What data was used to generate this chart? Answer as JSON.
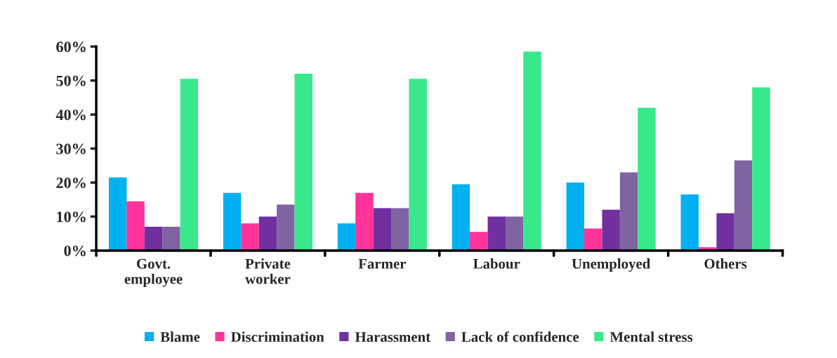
{
  "chart_data": {
    "type": "bar",
    "categories": [
      "Govt.\nemployee",
      "Private\nworker",
      "Farmer",
      "Labour",
      "Unemployed",
      "Others"
    ],
    "series": [
      {
        "name": "Blame",
        "color": "#00b0f0",
        "values": [
          21.5,
          17,
          8,
          19.5,
          20,
          16.5
        ]
      },
      {
        "name": "Discrimination",
        "color": "#ff3399",
        "values": [
          14.5,
          8,
          17,
          5.5,
          6.5,
          1
        ]
      },
      {
        "name": "Harassment",
        "color": "#7030a0",
        "values": [
          7,
          10,
          12.5,
          10,
          12,
          11
        ]
      },
      {
        "name": "Lack of confidence",
        "color": "#8064a2",
        "values": [
          7,
          13.5,
          12.5,
          10,
          23,
          26.5
        ]
      },
      {
        "name": "Mental stress",
        "color": "#38e88a",
        "values": [
          50.5,
          52,
          50.5,
          58.5,
          42,
          48
        ]
      }
    ],
    "ylim": [
      0,
      60
    ],
    "yticks": [
      {
        "value": 0,
        "label": "0%"
      },
      {
        "value": 10,
        "label": "10%"
      },
      {
        "value": 20,
        "label": "20%"
      },
      {
        "value": 30,
        "label": "30%"
      },
      {
        "value": 40,
        "label": "40%"
      },
      {
        "value": 50,
        "label": "50%"
      },
      {
        "value": 60,
        "label": "60%"
      }
    ],
    "grid": false,
    "legend": "bottom"
  }
}
